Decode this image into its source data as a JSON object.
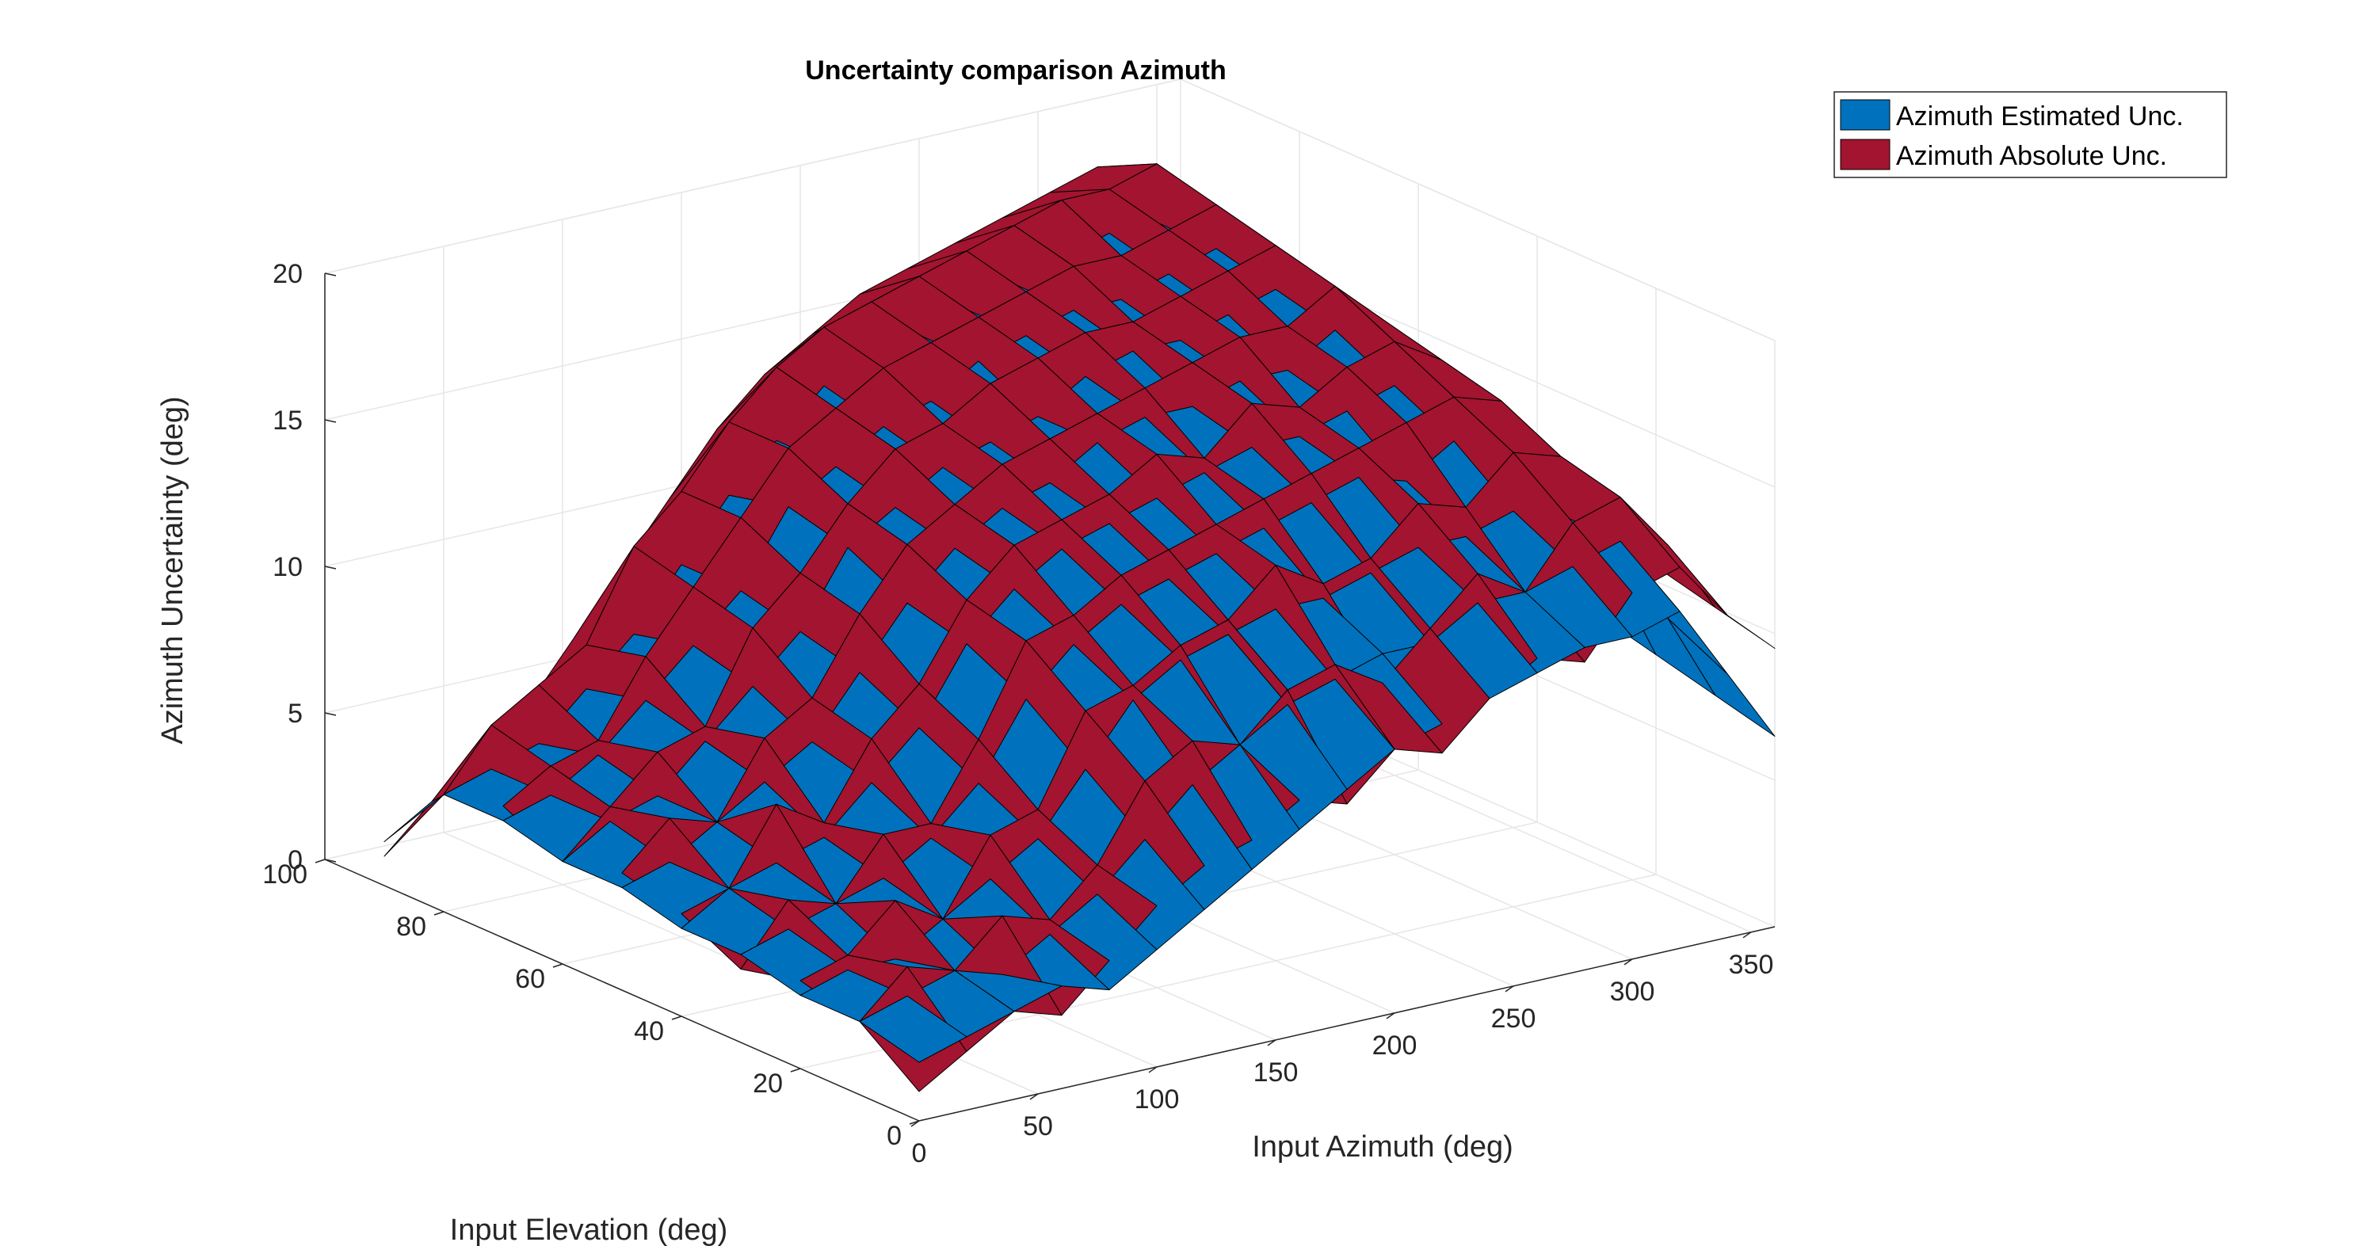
{
  "chart_data": {
    "type": "surface",
    "title": "Uncertainty comparison Azimuth",
    "xlabel": "Input Azimuth (deg)",
    "ylabel": "Input Elevation (deg)",
    "zlabel": "Azimuth  Uncertainty (deg)",
    "xlim": [
      0,
      360
    ],
    "ylim": [
      0,
      100
    ],
    "zlim": [
      0,
      20
    ],
    "xticks": [
      "0",
      "50",
      "100",
      "150",
      "200",
      "250",
      "300",
      "350"
    ],
    "yticks": [
      "0",
      "20",
      "40",
      "60",
      "80",
      "100"
    ],
    "zticks": [
      "0",
      "5",
      "10",
      "15",
      "20"
    ],
    "grid": true,
    "legend_position": "top-right",
    "azimuth_grid_deg": [
      0,
      20,
      40,
      60,
      80,
      100,
      120,
      140,
      160,
      180,
      200,
      220,
      240,
      260,
      280,
      300,
      320,
      340,
      360
    ],
    "elevation_grid_deg": [
      0,
      10,
      20,
      30,
      40,
      50,
      60,
      70,
      80,
      90
    ],
    "series": [
      {
        "name": "Azimuth Estimated Unc.",
        "color": "#0072BD",
        "z": [
          [
            2.0,
            2.5,
            3.0,
            3.5,
            3.0,
            4.0,
            5.0,
            6.0,
            7.0,
            8.0,
            9.0,
            9.5,
            10.0,
            10.5,
            11.0,
            11.0,
            11.5,
            9.0,
            6.5
          ],
          [
            2.5,
            3.0,
            3.5,
            3.0,
            4.0,
            5.0,
            6.5,
            8.0,
            9.0,
            10.0,
            10.5,
            11.0,
            11.0,
            12.0,
            12.0,
            12.5,
            13.0,
            10.0,
            7.0
          ],
          [
            2.5,
            3.0,
            3.0,
            4.0,
            5.0,
            6.0,
            8.0,
            10.0,
            11.0,
            11.5,
            12.0,
            12.0,
            12.5,
            13.0,
            13.0,
            13.5,
            13.0,
            11.0,
            7.5
          ],
          [
            3.0,
            3.5,
            4.0,
            4.5,
            5.5,
            7.0,
            9.5,
            11.0,
            12.0,
            12.5,
            13.0,
            13.5,
            14.0,
            14.5,
            14.0,
            15.0,
            14.5,
            12.0,
            8.0
          ],
          [
            3.0,
            4.0,
            4.5,
            5.0,
            6.5,
            8.0,
            10.5,
            12.0,
            13.0,
            13.5,
            14.0,
            14.5,
            15.0,
            15.0,
            15.5,
            16.0,
            15.0,
            12.5,
            8.0
          ],
          [
            3.5,
            4.0,
            5.0,
            6.0,
            7.0,
            9.0,
            11.0,
            12.5,
            13.5,
            14.0,
            15.0,
            15.5,
            15.5,
            16.0,
            16.0,
            17.0,
            15.5,
            12.0,
            8.5
          ],
          [
            3.5,
            4.5,
            5.0,
            6.5,
            8.0,
            9.5,
            12.0,
            13.0,
            14.0,
            14.5,
            15.0,
            16.0,
            16.5,
            16.5,
            17.0,
            17.5,
            16.0,
            12.5,
            9.0
          ],
          [
            4.0,
            4.5,
            5.5,
            7.0,
            8.5,
            10.0,
            12.5,
            13.5,
            14.5,
            15.0,
            16.0,
            16.5,
            17.0,
            17.0,
            17.5,
            18.0,
            16.5,
            13.0,
            9.0
          ],
          [
            4.0,
            4.5,
            5.0,
            6.5,
            8.0,
            10.0,
            12.0,
            13.5,
            15.0,
            15.5,
            16.0,
            16.5,
            17.0,
            17.5,
            18.0,
            18.0,
            16.5,
            13.0,
            9.5
          ],
          [
            1.5,
            2.5,
            3.5,
            4.5,
            5.5,
            7.5,
            9.5,
            11.0,
            12.5,
            13.5,
            14.5,
            15.5,
            16.0,
            16.5,
            17.0,
            17.5,
            16.0,
            13.0,
            9.0
          ]
        ]
      },
      {
        "name": "Azimuth Absolute Unc.",
        "color": "#A2142F",
        "z": [
          [
            1.0,
            2.0,
            3.0,
            2.5,
            4.0,
            5.5,
            6.5,
            7.0,
            8.0,
            7.5,
            9.0,
            8.5,
            10.0,
            11.0,
            10.5,
            12.5,
            13.0,
            11.0,
            9.5
          ],
          [
            2.5,
            4.0,
            3.5,
            5.0,
            4.5,
            6.0,
            8.5,
            9.5,
            9.0,
            10.5,
            11.0,
            10.0,
            11.5,
            13.0,
            12.0,
            14.0,
            14.5,
            12.5,
            10.0
          ],
          [
            3.0,
            3.5,
            5.0,
            4.0,
            6.5,
            7.0,
            10.0,
            10.5,
            11.5,
            12.0,
            13.5,
            12.5,
            13.0,
            14.5,
            14.0,
            15.5,
            15.0,
            13.0,
            10.5
          ],
          [
            2.5,
            4.5,
            4.0,
            6.0,
            6.0,
            8.5,
            11.5,
            12.0,
            13.0,
            13.5,
            14.0,
            14.5,
            15.0,
            15.5,
            16.0,
            16.5,
            16.0,
            13.5,
            11.0
          ],
          [
            3.5,
            4.0,
            6.5,
            5.5,
            8.0,
            9.5,
            12.0,
            13.5,
            14.0,
            14.5,
            15.5,
            15.0,
            16.5,
            16.0,
            17.0,
            17.5,
            16.5,
            14.0,
            11.5
          ],
          [
            4.0,
            5.5,
            5.0,
            7.5,
            8.5,
            11.0,
            13.0,
            14.0,
            15.0,
            15.5,
            16.0,
            16.5,
            17.0,
            17.5,
            17.5,
            18.5,
            17.0,
            14.5,
            12.0
          ],
          [
            3.5,
            5.0,
            6.5,
            7.0,
            10.0,
            11.5,
            13.5,
            15.0,
            15.5,
            16.5,
            17.0,
            17.5,
            17.5,
            18.0,
            18.5,
            19.0,
            17.5,
            15.0,
            12.0
          ],
          [
            4.5,
            5.5,
            6.0,
            8.5,
            10.5,
            12.5,
            14.5,
            15.5,
            16.5,
            17.0,
            17.5,
            18.0,
            18.5,
            18.5,
            19.0,
            19.5,
            18.0,
            15.0,
            12.5
          ],
          [
            4.0,
            6.0,
            7.0,
            8.0,
            11.0,
            12.5,
            14.5,
            16.0,
            17.0,
            17.5,
            18.0,
            18.5,
            19.0,
            19.5,
            19.5,
            20.0,
            18.5,
            15.5,
            12.5
          ],
          [
            1.0,
            2.5,
            3.5,
            5.0,
            7.0,
            9.0,
            11.0,
            13.0,
            14.5,
            15.5,
            16.5,
            17.0,
            17.5,
            18.0,
            18.5,
            19.0,
            18.0,
            15.0,
            12.0
          ]
        ]
      }
    ]
  }
}
